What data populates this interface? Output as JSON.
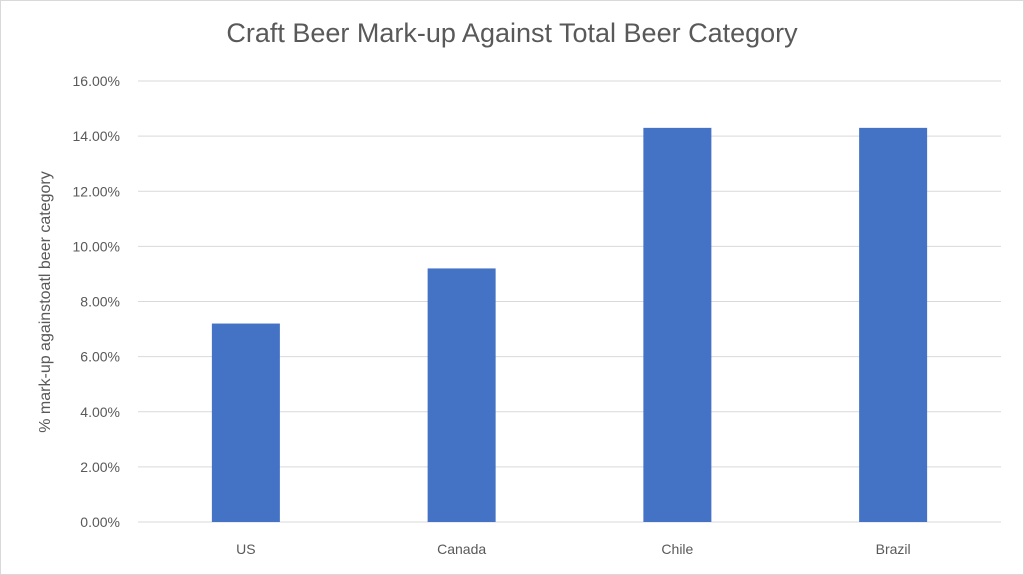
{
  "chart_data": {
    "type": "bar",
    "title": "Craft Beer  Mark-up Against Total Beer Category",
    "xlabel": "",
    "ylabel": "% mark-up againstoatl beer  category",
    "categories": [
      "US",
      "Canada",
      "Chile",
      "Brazil"
    ],
    "values": [
      7.2,
      9.2,
      14.3,
      14.3
    ],
    "ylim": [
      0,
      16
    ],
    "ytick_step": 2,
    "ytick_labels": [
      "0.00%",
      "2.00%",
      "4.00%",
      "6.00%",
      "8.00%",
      "10.00%",
      "12.00%",
      "14.00%",
      "16.00%"
    ],
    "grid": true,
    "legend": "none",
    "bar_color": "#4472c4",
    "grid_color": "#d9d9d9"
  }
}
